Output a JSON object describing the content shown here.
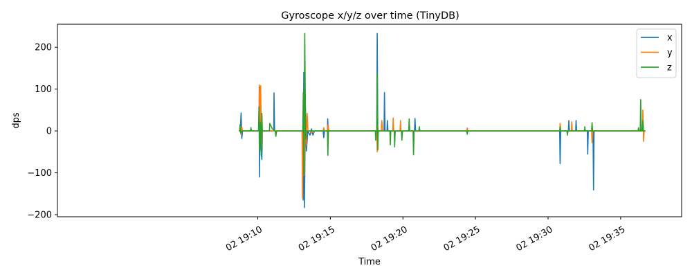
{
  "chart_data": {
    "type": "line",
    "title": "Gyroscope x/y/z over time (TinyDB)",
    "xlabel": "Time",
    "ylabel": "dps",
    "x_range_minutes": [
      -3.8,
      39.2
    ],
    "xlim": [
      "19:08.2",
      "19:39.2"
    ],
    "ylim": [
      -205,
      255
    ],
    "grid": false,
    "legend_position": "top-right",
    "x_ticks": [
      {
        "minute": 10,
        "label": "02 19:10"
      },
      {
        "minute": 15,
        "label": "02 19:15"
      },
      {
        "minute": 20,
        "label": "02 19:20"
      },
      {
        "minute": 25,
        "label": "02 19:25"
      },
      {
        "minute": 30,
        "label": "02 19:30"
      },
      {
        "minute": 35,
        "label": "02 19:35"
      }
    ],
    "y_ticks": [
      -200,
      -100,
      0,
      100,
      200
    ],
    "series": [
      {
        "name": "x",
        "color": "#1f77b4",
        "points": [
          [
            8.8,
            0
          ],
          [
            8.85,
            43
          ],
          [
            8.9,
            -18
          ],
          [
            8.95,
            0
          ],
          [
            10.1,
            0
          ],
          [
            10.12,
            -110
          ],
          [
            10.15,
            105
          ],
          [
            10.2,
            -40
          ],
          [
            10.28,
            -68
          ],
          [
            10.32,
            0
          ],
          [
            11.1,
            0
          ],
          [
            11.12,
            91
          ],
          [
            11.16,
            0
          ],
          [
            13.1,
            0
          ],
          [
            13.13,
            -165
          ],
          [
            13.17,
            140
          ],
          [
            13.22,
            -183
          ],
          [
            13.28,
            60
          ],
          [
            13.35,
            -48
          ],
          [
            13.45,
            0
          ],
          [
            13.6,
            -10
          ],
          [
            13.7,
            5
          ],
          [
            13.8,
            -10
          ],
          [
            13.9,
            0
          ],
          [
            14.5,
            0
          ],
          [
            14.55,
            -16
          ],
          [
            14.6,
            0
          ],
          [
            14.8,
            0
          ],
          [
            14.82,
            29
          ],
          [
            14.86,
            0
          ],
          [
            18.2,
            0
          ],
          [
            18.23,
            233
          ],
          [
            18.27,
            -20
          ],
          [
            18.3,
            0
          ],
          [
            18.7,
            0
          ],
          [
            18.73,
            92
          ],
          [
            18.77,
            0
          ],
          [
            18.9,
            0
          ],
          [
            18.93,
            25
          ],
          [
            18.97,
            0
          ],
          [
            20.8,
            0
          ],
          [
            20.83,
            30
          ],
          [
            20.87,
            0
          ],
          [
            30.8,
            0
          ],
          [
            30.83,
            -78
          ],
          [
            30.87,
            0
          ],
          [
            31.4,
            0
          ],
          [
            31.43,
            25
          ],
          [
            31.47,
            0
          ],
          [
            31.9,
            0
          ],
          [
            31.93,
            25
          ],
          [
            31.97,
            0
          ],
          [
            32.7,
            0
          ],
          [
            32.73,
            -55
          ],
          [
            32.77,
            0
          ],
          [
            33.1,
            0
          ],
          [
            33.13,
            -141
          ],
          [
            33.17,
            0
          ],
          [
            36.5,
            0
          ],
          [
            36.53,
            25
          ],
          [
            36.57,
            0
          ]
        ]
      },
      {
        "name": "y",
        "color": "#ff7f0e",
        "points": [
          [
            8.8,
            0
          ],
          [
            8.85,
            -8
          ],
          [
            8.9,
            10
          ],
          [
            8.95,
            0
          ],
          [
            10.08,
            0
          ],
          [
            10.1,
            110
          ],
          [
            10.14,
            15
          ],
          [
            10.2,
            108
          ],
          [
            10.26,
            -40
          ],
          [
            10.3,
            0
          ],
          [
            13.05,
            0
          ],
          [
            13.08,
            -160
          ],
          [
            13.14,
            30
          ],
          [
            13.2,
            -105
          ],
          [
            13.26,
            48
          ],
          [
            13.33,
            -35
          ],
          [
            13.4,
            42
          ],
          [
            13.46,
            0
          ],
          [
            13.6,
            0
          ],
          [
            13.7,
            -5
          ],
          [
            13.8,
            0
          ],
          [
            14.5,
            0
          ],
          [
            14.55,
            8
          ],
          [
            14.6,
            0
          ],
          [
            14.8,
            0
          ],
          [
            14.85,
            15
          ],
          [
            14.9,
            0
          ],
          [
            18.2,
            0
          ],
          [
            18.23,
            -50
          ],
          [
            18.27,
            10
          ],
          [
            18.3,
            0
          ],
          [
            18.5,
            0
          ],
          [
            18.55,
            25
          ],
          [
            18.6,
            0
          ],
          [
            19.3,
            0
          ],
          [
            19.33,
            31
          ],
          [
            19.37,
            0
          ],
          [
            19.8,
            0
          ],
          [
            19.83,
            25
          ],
          [
            19.87,
            0
          ],
          [
            24.4,
            0
          ],
          [
            24.43,
            7
          ],
          [
            24.47,
            0
          ],
          [
            30.8,
            0
          ],
          [
            30.83,
            18
          ],
          [
            30.87,
            0
          ],
          [
            31.6,
            0
          ],
          [
            31.63,
            22
          ],
          [
            31.67,
            0
          ],
          [
            33.0,
            0
          ],
          [
            33.03,
            -28
          ],
          [
            33.07,
            0
          ],
          [
            36.5,
            0
          ],
          [
            36.53,
            50
          ],
          [
            36.58,
            -25
          ],
          [
            36.62,
            0
          ]
        ]
      },
      {
        "name": "z",
        "color": "#2ca02c",
        "points": [
          [
            8.75,
            0
          ],
          [
            8.78,
            15
          ],
          [
            8.82,
            -5
          ],
          [
            8.87,
            0
          ],
          [
            9.5,
            0
          ],
          [
            9.53,
            8
          ],
          [
            9.57,
            0
          ],
          [
            10.05,
            0
          ],
          [
            10.08,
            58
          ],
          [
            10.12,
            -45
          ],
          [
            10.18,
            20
          ],
          [
            10.24,
            -60
          ],
          [
            10.28,
            42
          ],
          [
            10.32,
            0
          ],
          [
            10.8,
            0
          ],
          [
            10.83,
            18
          ],
          [
            11.0,
            5
          ],
          [
            11.2,
            0
          ],
          [
            11.25,
            -13
          ],
          [
            11.3,
            0
          ],
          [
            13.1,
            0
          ],
          [
            13.14,
            92
          ],
          [
            13.18,
            -103
          ],
          [
            13.24,
            233
          ],
          [
            13.3,
            -20
          ],
          [
            13.35,
            0
          ],
          [
            14.8,
            0
          ],
          [
            14.83,
            -58
          ],
          [
            14.87,
            0
          ],
          [
            18.1,
            0
          ],
          [
            18.13,
            -22
          ],
          [
            18.17,
            0
          ],
          [
            18.2,
            0
          ],
          [
            18.23,
            137
          ],
          [
            18.27,
            -45
          ],
          [
            18.3,
            0
          ],
          [
            19.1,
            0
          ],
          [
            19.13,
            -33
          ],
          [
            19.17,
            0
          ],
          [
            19.4,
            0
          ],
          [
            19.43,
            -38
          ],
          [
            19.47,
            0
          ],
          [
            19.9,
            0
          ],
          [
            19.93,
            -22
          ],
          [
            19.97,
            0
          ],
          [
            20.4,
            0
          ],
          [
            20.43,
            29
          ],
          [
            20.47,
            0
          ],
          [
            20.7,
            0
          ],
          [
            20.73,
            -57
          ],
          [
            20.77,
            0
          ],
          [
            21.1,
            0
          ],
          [
            21.13,
            10
          ],
          [
            21.17,
            0
          ],
          [
            24.4,
            0
          ],
          [
            24.43,
            -8
          ],
          [
            24.47,
            0
          ],
          [
            30.8,
            0
          ],
          [
            30.83,
            10
          ],
          [
            30.87,
            0
          ],
          [
            31.3,
            0
          ],
          [
            31.33,
            -10
          ],
          [
            31.37,
            0
          ],
          [
            32.5,
            0
          ],
          [
            32.53,
            10
          ],
          [
            32.57,
            0
          ],
          [
            33.0,
            0
          ],
          [
            33.03,
            20
          ],
          [
            33.07,
            0
          ],
          [
            36.2,
            0
          ],
          [
            36.23,
            8
          ],
          [
            36.27,
            0
          ],
          [
            36.35,
            0
          ],
          [
            36.38,
            75
          ],
          [
            36.42,
            0
          ],
          [
            36.5,
            0
          ],
          [
            36.53,
            25
          ],
          [
            36.57,
            0
          ]
        ]
      }
    ]
  }
}
